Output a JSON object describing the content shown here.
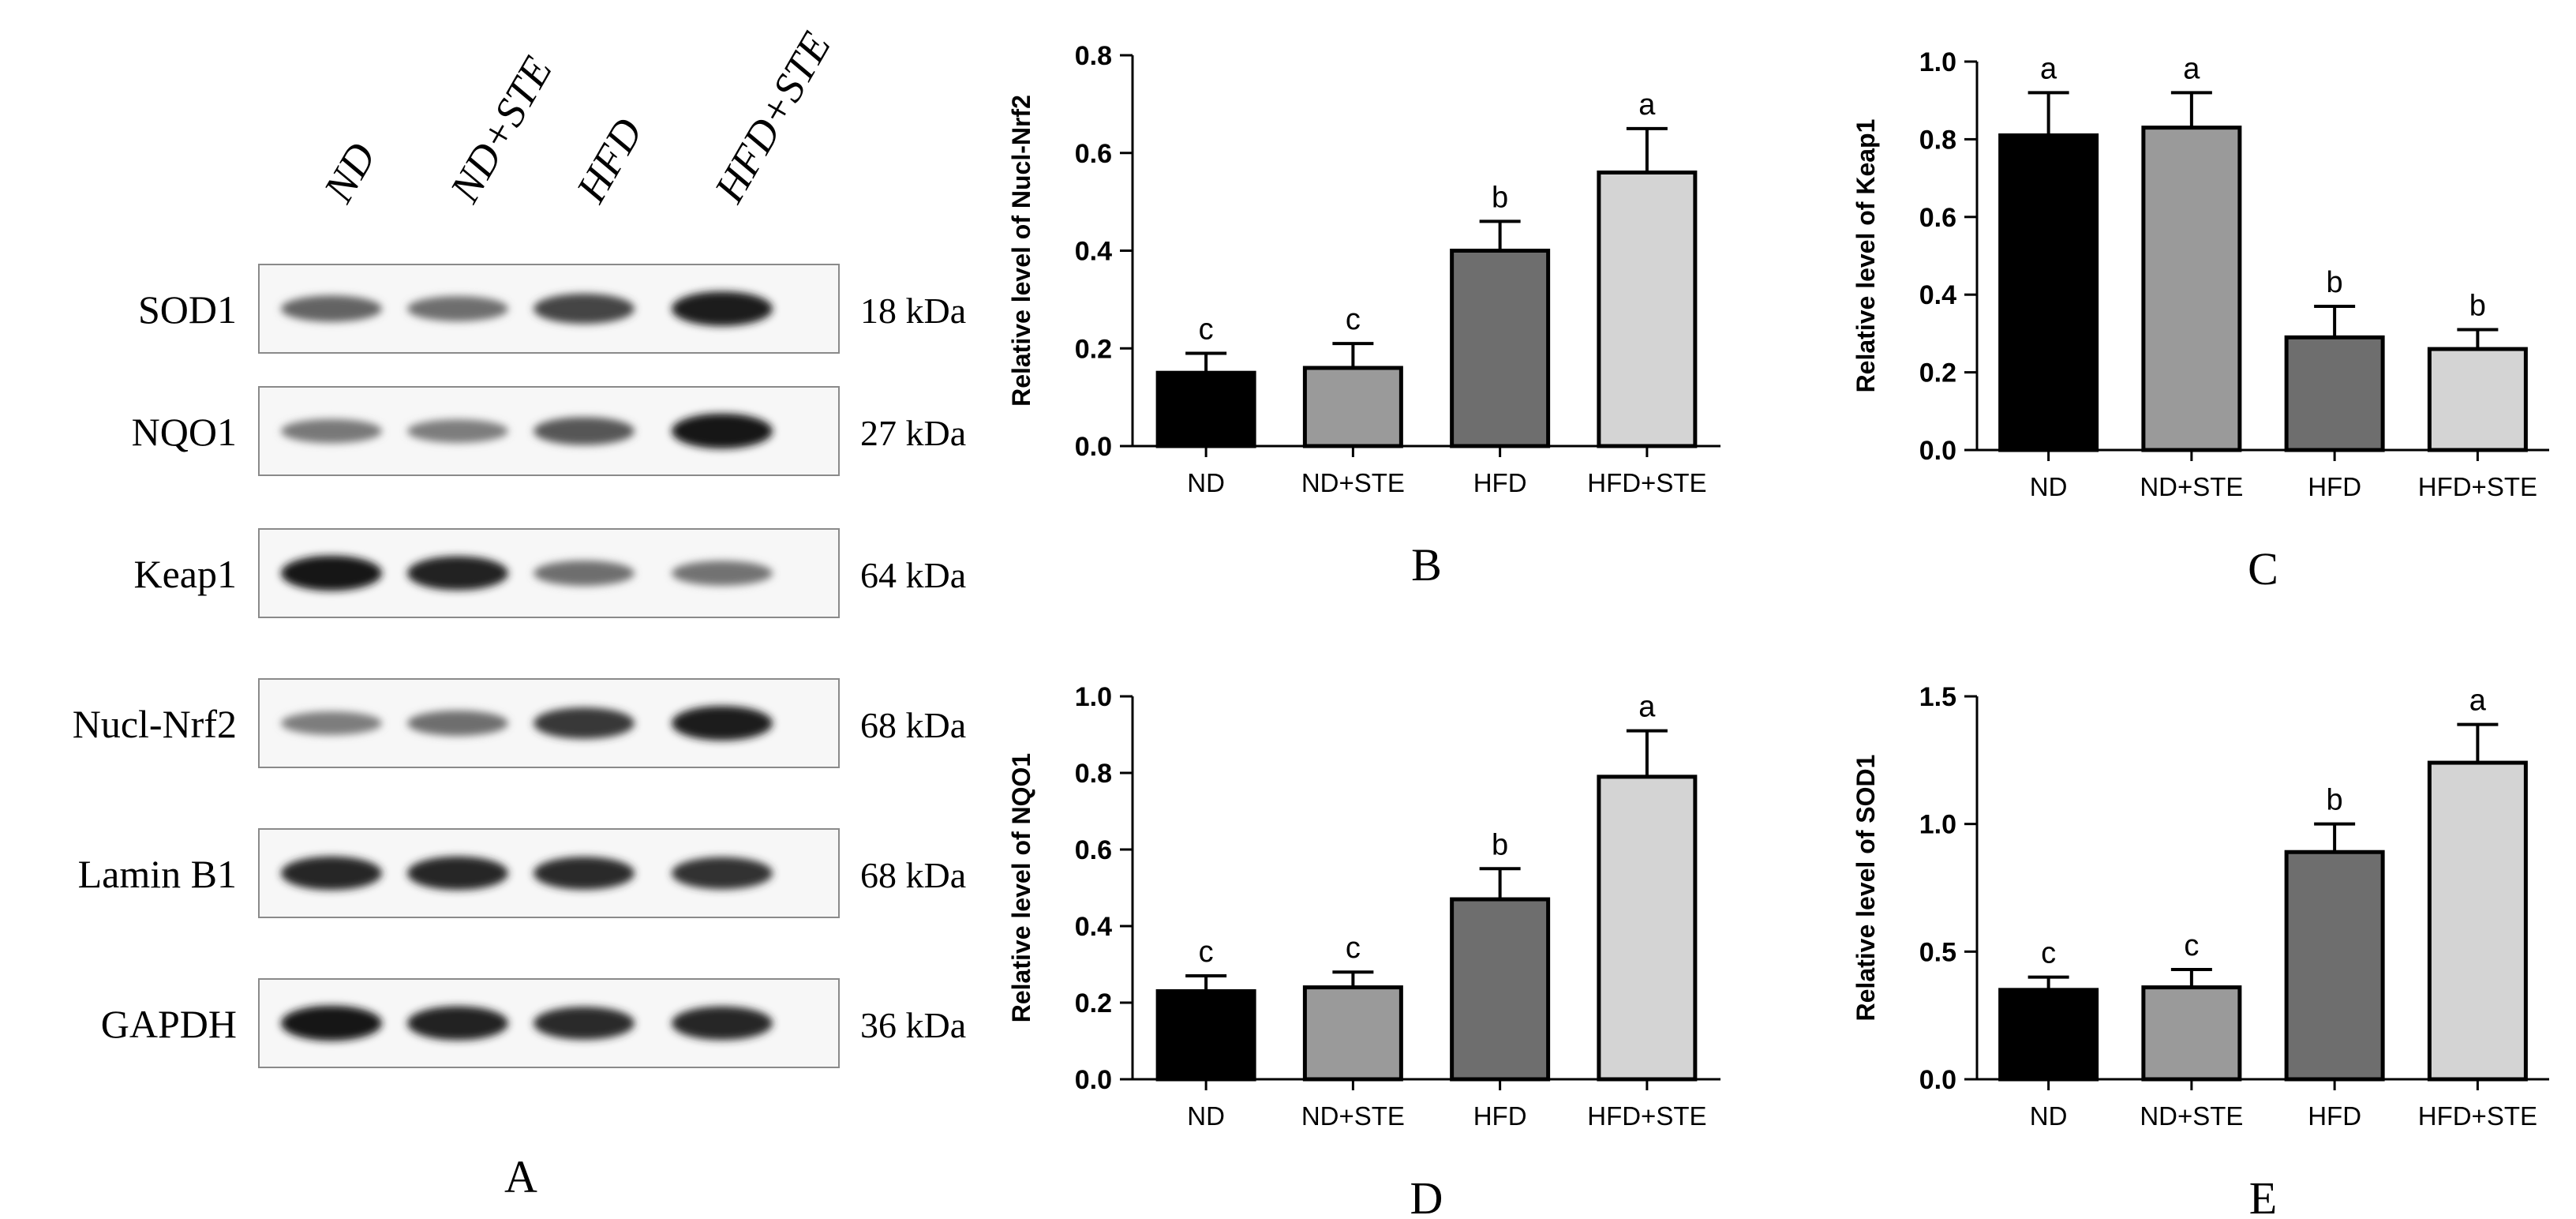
{
  "panel_a": {
    "letter": "A",
    "lanes": [
      "ND",
      "ND+STE",
      "HFD",
      "HFD+STE"
    ],
    "blots": [
      {
        "protein": "SOD1",
        "size": "18 kDa",
        "intensity": [
          0.55,
          0.5,
          0.72,
          0.92
        ]
      },
      {
        "protein": "NQO1",
        "size": "27 kDa",
        "intensity": [
          0.45,
          0.42,
          0.62,
          0.95
        ]
      },
      {
        "protein": "Keap1",
        "size": "64 kDa",
        "intensity": [
          0.95,
          0.9,
          0.5,
          0.48
        ]
      },
      {
        "protein": "Nucl-Nrf2",
        "size": "68 kDa",
        "intensity": [
          0.42,
          0.5,
          0.78,
          0.92
        ]
      },
      {
        "protein": "Lamin B1",
        "size": "68 kDa",
        "intensity": [
          0.88,
          0.88,
          0.85,
          0.82
        ]
      },
      {
        "protein": "GAPDH",
        "size": "36 kDa",
        "intensity": [
          0.95,
          0.9,
          0.85,
          0.88
        ]
      }
    ]
  },
  "chart_data": [
    {
      "type": "bar",
      "panel": "B",
      "ylabel": "Relative level of Nucl-Nrf2",
      "categories": [
        "ND",
        "ND+STE",
        "HFD",
        "HFD+STE"
      ],
      "values": [
        0.15,
        0.16,
        0.4,
        0.56
      ],
      "errors": [
        0.04,
        0.05,
        0.06,
        0.09
      ],
      "letters": [
        "c",
        "c",
        "b",
        "a"
      ],
      "ylim": [
        0,
        0.8
      ],
      "yticks": [
        "0.0",
        "0.2",
        "0.4",
        "0.6",
        "0.8"
      ],
      "colors": [
        "#000000",
        "#9a9a9a",
        "#6e6e6e",
        "#d4d4d4"
      ]
    },
    {
      "type": "bar",
      "panel": "C",
      "ylabel": "Relative level of Keap1",
      "categories": [
        "ND",
        "ND+STE",
        "HFD",
        "HFD+STE"
      ],
      "values": [
        0.81,
        0.83,
        0.29,
        0.26
      ],
      "errors": [
        0.11,
        0.09,
        0.08,
        0.05
      ],
      "letters": [
        "a",
        "a",
        "b",
        "b"
      ],
      "ylim": [
        0,
        1.0
      ],
      "yticks": [
        "0.0",
        "0.2",
        "0.4",
        "0.6",
        "0.8",
        "1.0"
      ],
      "colors": [
        "#000000",
        "#9a9a9a",
        "#6e6e6e",
        "#d4d4d4"
      ]
    },
    {
      "type": "bar",
      "panel": "D",
      "ylabel": "Relative level of NQO1",
      "categories": [
        "ND",
        "ND+STE",
        "HFD",
        "HFD+STE"
      ],
      "values": [
        0.23,
        0.24,
        0.47,
        0.79
      ],
      "errors": [
        0.04,
        0.04,
        0.08,
        0.12
      ],
      "letters": [
        "c",
        "c",
        "b",
        "a"
      ],
      "ylim": [
        0,
        1.0
      ],
      "yticks": [
        "0.0",
        "0.2",
        "0.4",
        "0.6",
        "0.8",
        "1.0"
      ],
      "colors": [
        "#000000",
        "#9a9a9a",
        "#6e6e6e",
        "#d4d4d4"
      ]
    },
    {
      "type": "bar",
      "panel": "E",
      "ylabel": "Relative level of SOD1",
      "categories": [
        "ND",
        "ND+STE",
        "HFD",
        "HFD+STE"
      ],
      "values": [
        0.35,
        0.36,
        0.89,
        1.24
      ],
      "errors": [
        0.05,
        0.07,
        0.11,
        0.15
      ],
      "letters": [
        "c",
        "c",
        "b",
        "a"
      ],
      "ylim": [
        0,
        1.5
      ],
      "yticks": [
        "0.0",
        "0.5",
        "1.0",
        "1.5"
      ],
      "colors": [
        "#000000",
        "#9a9a9a",
        "#6e6e6e",
        "#d4d4d4"
      ]
    }
  ]
}
